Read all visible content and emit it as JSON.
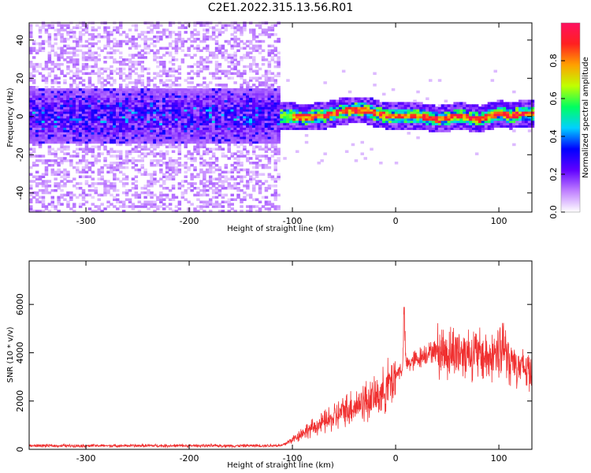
{
  "figure": {
    "title": "C2E1.2022.315.13.56.R01"
  },
  "chart_data": [
    {
      "type": "heatmap",
      "xlabel": "Height of straight line (km)",
      "ylabel": "Frequency (Hz)",
      "xlim": [
        -355,
        132
      ],
      "ylim": [
        -50,
        49
      ],
      "x_ticks": [
        -300,
        -200,
        -100,
        0,
        100
      ],
      "y_ticks": [
        -40,
        -20,
        0,
        20,
        40
      ],
      "colorbar": {
        "label": "Normalized spectral amplitude",
        "range": [
          0.0,
          1.0
        ],
        "ticks": [
          0.0,
          0.2,
          0.4,
          0.6,
          0.8
        ],
        "colors": [
          "#ffffff",
          "#c080ff",
          "#6000ff",
          "#0000ff",
          "#00d0ff",
          "#00ff60",
          "#c0ff00",
          "#ffa000",
          "#ff2020",
          "#ff1060"
        ]
      },
      "noise_region_x": [
        -355,
        -112
      ],
      "frequency_ridge": {
        "x": [
          -110,
          -90,
          -70,
          -55,
          -45,
          -30,
          -20,
          -10,
          0,
          10,
          20,
          30,
          40,
          50,
          60,
          70,
          80,
          90,
          100,
          110,
          120,
          132
        ],
        "y": [
          0,
          -1,
          0,
          2,
          3,
          3,
          1,
          0,
          0,
          0,
          0,
          -1,
          -2,
          -1,
          0,
          -1,
          -2,
          0,
          1,
          0,
          1,
          1
        ]
      }
    },
    {
      "type": "line",
      "xlabel": "Height of straight line (km)",
      "ylabel": "SNR (10 * v/v)",
      "xlim": [
        -355,
        132
      ],
      "ylim": [
        0,
        7800
      ],
      "x_ticks": [
        -300,
        -200,
        -100,
        0,
        100
      ],
      "y_ticks": [
        0,
        2000,
        4000,
        6000
      ],
      "line_color": "#f03030",
      "series": [
        {
          "x": [
            -355,
            -300,
            -250,
            -200,
            -150,
            -110,
            -100,
            -90,
            -80,
            -70,
            -60,
            -50,
            -40,
            -30,
            -20,
            -10,
            0,
            7,
            8,
            10,
            20,
            30,
            40,
            50,
            60,
            70,
            80,
            90,
            100,
            105,
            110,
            115,
            120,
            132
          ],
          "values": [
            150,
            150,
            150,
            150,
            150,
            160,
            400,
            700,
            900,
            1100,
            1300,
            1600,
            1800,
            2000,
            2100,
            2500,
            3100,
            3400,
            5900,
            3500,
            3700,
            4000,
            4100,
            4000,
            4100,
            4000,
            3900,
            3800,
            3800,
            4200,
            3800,
            3600,
            3400,
            3300
          ]
        }
      ]
    }
  ]
}
